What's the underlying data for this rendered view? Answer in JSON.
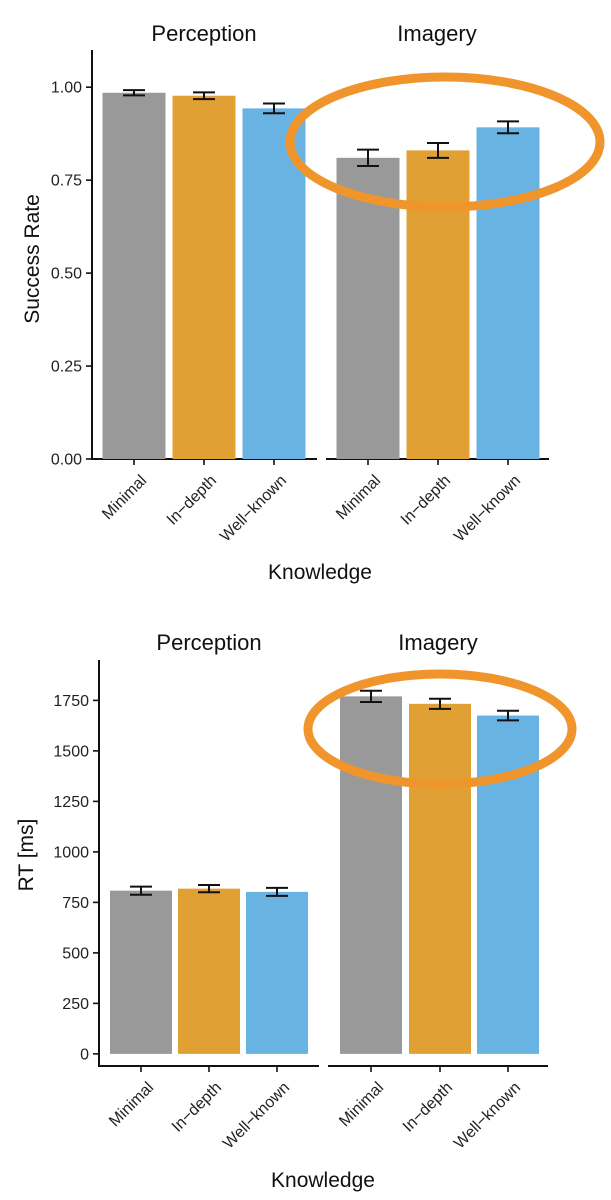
{
  "colors": {
    "Minimal": "#999999",
    "In−depth": "#E0A034",
    "Well−known": "#69B3E3",
    "highlight": "#F0952C"
  },
  "chart_data": [
    {
      "type": "bar",
      "facets": [
        "Perception",
        "Imagery"
      ],
      "categories": [
        "Minimal",
        "In−depth",
        "Well−known"
      ],
      "series": [
        {
          "facet": "Perception",
          "values": [
            0.985,
            0.977,
            0.943
          ],
          "errors": [
            0.007,
            0.009,
            0.013
          ]
        },
        {
          "facet": "Imagery",
          "values": [
            0.81,
            0.83,
            0.892
          ],
          "errors": [
            0.022,
            0.02,
            0.016
          ]
        }
      ],
      "xlabel": "Knowledge",
      "ylabel": "Success Rate",
      "ylim": [
        0,
        1.1
      ],
      "yticks": [
        "0.00",
        "0.25",
        "0.50",
        "0.75",
        "1.00"
      ],
      "ytick_values": [
        0,
        0.25,
        0.5,
        0.75,
        1.0
      ],
      "grid": false,
      "highlight": "Imagery"
    },
    {
      "type": "bar",
      "facets": [
        "Perception",
        "Imagery"
      ],
      "categories": [
        "Minimal",
        "In−depth",
        "Well−known"
      ],
      "series": [
        {
          "facet": "Perception",
          "values": [
            808,
            818,
            802
          ],
          "errors": [
            20,
            18,
            20
          ]
        },
        {
          "facet": "Imagery",
          "values": [
            1770,
            1733,
            1675
          ],
          "errors": [
            28,
            25,
            24
          ]
        }
      ],
      "xlabel": "Knowledge",
      "ylabel": "RT [ms]",
      "ylim": [
        -60,
        1950
      ],
      "yticks": [
        "0",
        "250",
        "500",
        "750",
        "1000",
        "1250",
        "1500",
        "1750"
      ],
      "ytick_values": [
        0,
        250,
        500,
        750,
        1000,
        1250,
        1500,
        1750
      ],
      "grid": false,
      "highlight": "Imagery"
    }
  ]
}
